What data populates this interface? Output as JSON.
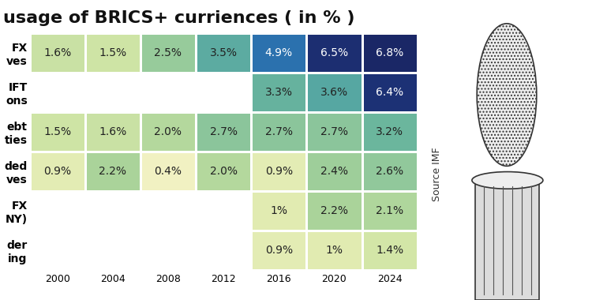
{
  "chart_data": {
    "type": "heatmap",
    "title": "usage of BRICS+ curriences ( in % )",
    "categories": [
      "2000",
      "2004",
      "2008",
      "2012",
      "2016",
      "2020",
      "2024"
    ],
    "rows": [
      "FX\nves",
      "IFT\nons",
      "ebt\nties",
      "ded\nves",
      "FX\nNY)",
      "der\ning"
    ],
    "cells": [
      [
        1.6,
        1.5,
        2.5,
        3.5,
        4.9,
        6.5,
        6.8
      ],
      [
        null,
        null,
        null,
        null,
        3.3,
        3.6,
        6.4
      ],
      [
        1.5,
        1.6,
        2.0,
        2.7,
        2.7,
        2.7,
        3.2
      ],
      [
        0.9,
        2.2,
        0.4,
        2.0,
        0.9,
        2.4,
        2.6
      ],
      [
        null,
        null,
        null,
        null,
        1,
        2.2,
        2.1
      ],
      [
        null,
        null,
        null,
        null,
        0.9,
        1,
        1.4
      ]
    ],
    "cell_labels": [
      [
        "1.6%",
        "1.5%",
        "2.5%",
        "3.5%",
        "4.9%",
        "6.5%",
        "6.8%"
      ],
      [
        null,
        null,
        null,
        null,
        "3.3%",
        "3.6%",
        "6.4%"
      ],
      [
        "1.5%",
        "1.6%",
        "2.0%",
        "2.7%",
        "2.7%",
        "2.7%",
        "3.2%"
      ],
      [
        "0.9%",
        "2.2%",
        "0.4%",
        "2.0%",
        "0.9%",
        "2.4%",
        "2.6%"
      ],
      [
        null,
        null,
        null,
        null,
        "1%",
        "2.2%",
        "2.1%"
      ],
      [
        null,
        null,
        null,
        null,
        "0.9%",
        "1%",
        "1.4%"
      ]
    ],
    "data_labels": true,
    "source": "Source IMF"
  }
}
